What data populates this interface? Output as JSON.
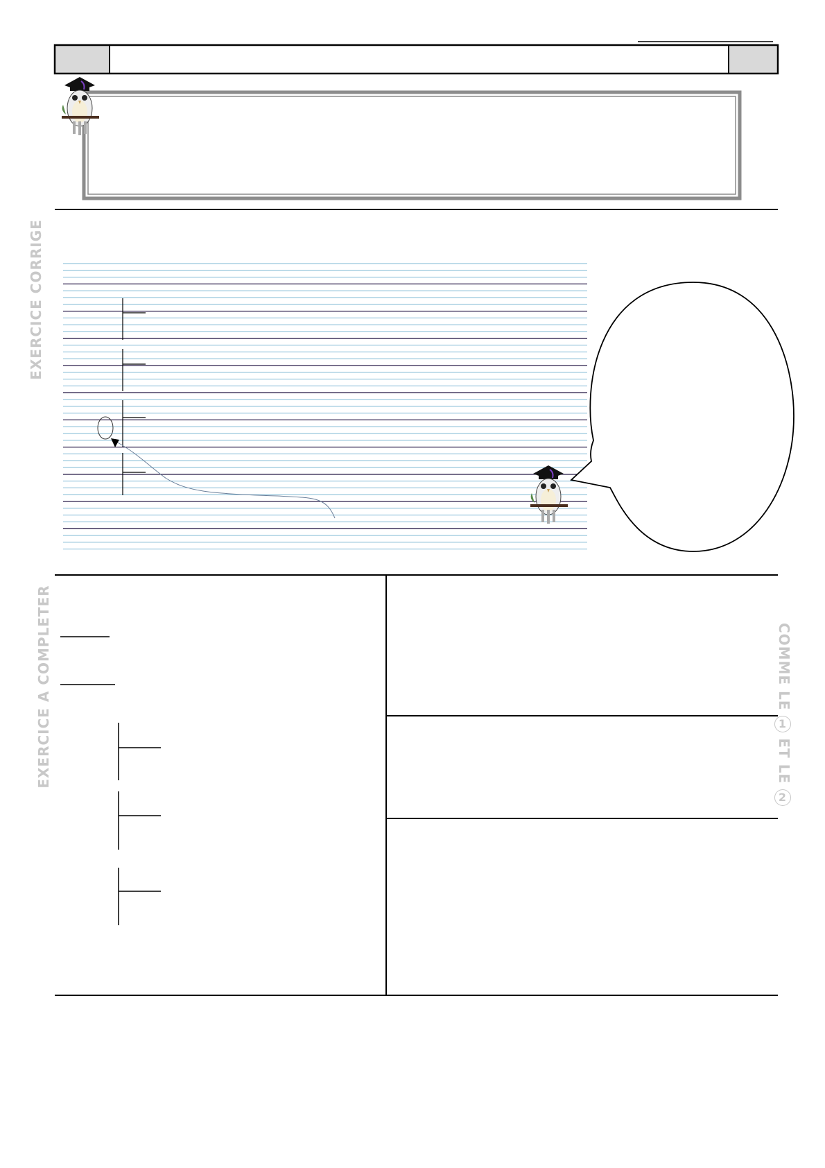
{
  "sections": {
    "corrected_label": "EXERCICE CORRIGE",
    "complete_label": "EXERCICE A COMPLETER",
    "hint": {
      "prefix": "COMME LE",
      "num1": "1",
      "middle": "ET LE",
      "num2": "2"
    }
  },
  "icons": {
    "owl": "owl-graduate-icon"
  },
  "colors": {
    "ruled_blue": "#7fb8d4",
    "ruled_dark": "#2a1d4a",
    "frame_gray": "#8c8c8c",
    "header_cell": "#d9d9d9",
    "label_gray": "#c8c8c8"
  }
}
